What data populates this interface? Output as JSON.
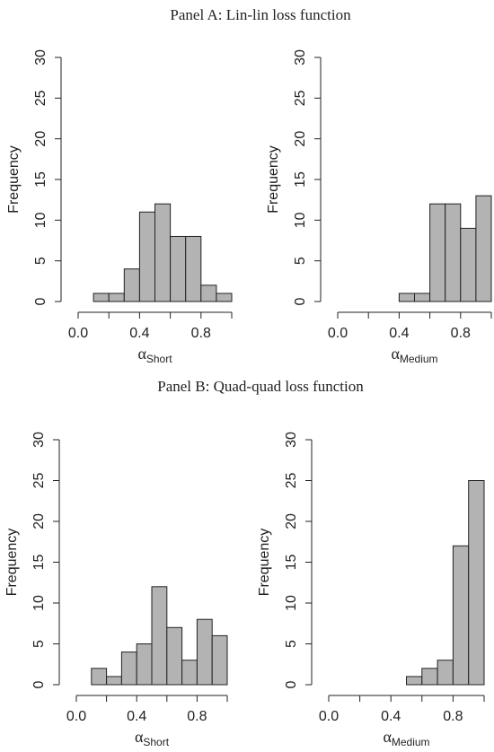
{
  "panel_titles": [
    "Panel A: Lin-lin loss function",
    "Panel B: Quad-quad loss function"
  ],
  "chart_data": [
    {
      "type": "histogram",
      "bins": [
        0,
        0.1,
        0.2,
        0.3,
        0.4,
        0.5,
        0.6,
        0.7,
        0.8,
        0.9,
        1.0
      ],
      "values": [
        0,
        1,
        1,
        4,
        11,
        12,
        8,
        8,
        2,
        1
      ],
      "color": "#b3b3b3",
      "xlim": [
        0,
        1
      ],
      "xticks": [
        {
          "value": 0,
          "label": "0.0"
        },
        0.4,
        0.8
      ],
      "xminorticks": [
        0.2,
        0.6,
        1.0
      ],
      "ylim": [
        0,
        30
      ],
      "yticks": [
        0,
        5,
        10,
        15,
        20,
        25,
        30
      ],
      "y_label": "Frequency",
      "x_label": {
        "symbol": "α",
        "subscript": "Short"
      }
    },
    {
      "type": "histogram",
      "bins": [
        0,
        0.1,
        0.2,
        0.3,
        0.4,
        0.5,
        0.6,
        0.7,
        0.8,
        0.9,
        1.0
      ],
      "values": [
        0,
        0,
        0,
        0,
        1,
        1,
        12,
        12,
        9,
        13
      ],
      "color": "#b3b3b3",
      "xlim": [
        0,
        1
      ],
      "xticks": [
        {
          "value": 0,
          "label": "0.0"
        },
        0.4,
        0.8
      ],
      "xminorticks": [
        0.2,
        0.6,
        1.0
      ],
      "ylim": [
        0,
        30
      ],
      "yticks": [
        0,
        5,
        10,
        15,
        20,
        25,
        30
      ],
      "y_label": "Frequency",
      "x_label": {
        "symbol": "α",
        "subscript": "Medium"
      }
    },
    {
      "type": "histogram",
      "bins": [
        0,
        0.1,
        0.2,
        0.3,
        0.4,
        0.5,
        0.6,
        0.7,
        0.8,
        0.9,
        1.0
      ],
      "values": [
        0,
        2,
        1,
        4,
        5,
        12,
        7,
        3,
        8,
        6
      ],
      "color": "#b3b3b3",
      "xlim": [
        0,
        1
      ],
      "xticks": [
        {
          "value": 0,
          "label": "0.0"
        },
        0.4,
        0.8
      ],
      "xminorticks": [
        0.2,
        0.6,
        1.0
      ],
      "ylim": [
        0,
        30
      ],
      "yticks": [
        0,
        5,
        10,
        15,
        20,
        25,
        30
      ],
      "y_label": "Frequency",
      "x_label": {
        "symbol": "α",
        "subscript": "Short"
      }
    },
    {
      "type": "histogram",
      "bins": [
        0,
        0.1,
        0.2,
        0.3,
        0.4,
        0.5,
        0.6,
        0.7,
        0.8,
        0.9,
        1.0
      ],
      "values": [
        0,
        0,
        0,
        0,
        0,
        1,
        2,
        3,
        17,
        25
      ],
      "color": "#b3b3b3",
      "xlim": [
        0,
        1
      ],
      "xticks": [
        {
          "value": 0,
          "label": "0.0"
        },
        0.4,
        0.8
      ],
      "xminorticks": [
        0.2,
        0.6,
        1.0
      ],
      "ylim": [
        0,
        30
      ],
      "yticks": [
        0,
        5,
        10,
        15,
        20,
        25,
        30
      ],
      "y_label": "Frequency",
      "x_label": {
        "symbol": "α",
        "subscript": "Medium"
      }
    }
  ]
}
